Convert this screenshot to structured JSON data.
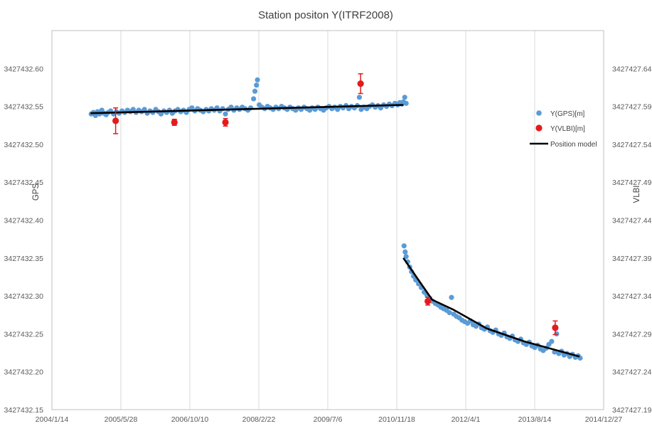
{
  "chart_data": {
    "type": "scatter",
    "title": "Station positon Y(ITRF2008)",
    "y_left_label": "GPS",
    "y_right_label": "VLBI",
    "x_axis": {
      "type": "date",
      "range": [
        "2004-01-14",
        "2014-12-27"
      ],
      "tick_labels": [
        "2004/1/14",
        "2005/5/28",
        "2006/10/10",
        "2008/2/22",
        "2009/7/6",
        "2010/11/18",
        "2012/4/1",
        "2013/8/14",
        "2014/12/27"
      ]
    },
    "y_left_axis": {
      "range": [
        3427432.15,
        3427432.65
      ],
      "ticks": [
        3427432.15,
        3427432.2,
        3427432.25,
        3427432.3,
        3427432.35,
        3427432.4,
        3427432.45,
        3427432.5,
        3427432.55,
        3427432.6
      ],
      "tick_labels": [
        "3427432.15",
        "3427432.20",
        "3427432.25",
        "3427432.30",
        "3427432.35",
        "3427432.40",
        "3427432.45",
        "3427432.50",
        "3427432.55",
        "3427432.60"
      ]
    },
    "y_right_axis": {
      "range": [
        3427427.19,
        3427427.69
      ],
      "ticks": [
        3427427.19,
        3427427.24,
        3427427.29,
        3427427.34,
        3427427.39,
        3427427.44,
        3427427.49,
        3427427.54,
        3427427.59,
        3427427.64
      ],
      "tick_labels": [
        "3427427.19",
        "3427427.24",
        "3427427.29",
        "3427427.34",
        "3427427.39",
        "3427427.44",
        "3427427.49",
        "3427427.54",
        "3427427.59",
        "3427427.64"
      ]
    },
    "grid": "vertical",
    "legend_position": "right",
    "series": [
      {
        "name": "Y(GPS)[m]",
        "kind": "scatter",
        "axis": "left",
        "color": "#5b9bd5",
        "points": [
          [
            "2004-10-25",
            3427432.54
          ],
          [
            "2004-11-10",
            3427432.542
          ],
          [
            "2004-11-25",
            3427432.538
          ],
          [
            "2004-12-10",
            3427432.543
          ],
          [
            "2004-12-25",
            3427432.54
          ],
          [
            "2005-01-10",
            3427432.545
          ],
          [
            "2005-01-25",
            3427432.541
          ],
          [
            "2005-02-10",
            3427432.539
          ],
          [
            "2005-02-25",
            3427432.542
          ],
          [
            "2005-03-15",
            3427432.544
          ],
          [
            "2005-04-05",
            3427432.54
          ],
          [
            "2005-04-25",
            3427432.543
          ],
          [
            "2005-05-15",
            3427432.541
          ],
          [
            "2005-06-05",
            3427432.544
          ],
          [
            "2005-06-25",
            3427432.542
          ],
          [
            "2005-07-15",
            3427432.545
          ],
          [
            "2005-08-05",
            3427432.543
          ],
          [
            "2005-08-25",
            3427432.546
          ],
          [
            "2005-09-15",
            3427432.542
          ],
          [
            "2005-10-05",
            3427432.545
          ],
          [
            "2005-10-25",
            3427432.543
          ],
          [
            "2005-11-15",
            3427432.546
          ],
          [
            "2005-12-05",
            3427432.541
          ],
          [
            "2005-12-25",
            3427432.544
          ],
          [
            "2006-01-15",
            3427432.542
          ],
          [
            "2006-02-05",
            3427432.546
          ],
          [
            "2006-02-25",
            3427432.543
          ],
          [
            "2006-03-15",
            3427432.54
          ],
          [
            "2006-04-05",
            3427432.544
          ],
          [
            "2006-04-25",
            3427432.542
          ],
          [
            "2006-05-15",
            3427432.545
          ],
          [
            "2006-06-05",
            3427432.541
          ],
          [
            "2006-06-25",
            3427432.544
          ],
          [
            "2006-07-15",
            3427432.546
          ],
          [
            "2006-08-05",
            3427432.543
          ],
          [
            "2006-08-25",
            3427432.545
          ],
          [
            "2006-09-15",
            3427432.542
          ],
          [
            "2006-10-05",
            3427432.546
          ],
          [
            "2006-10-25",
            3427432.548
          ],
          [
            "2006-11-15",
            3427432.544
          ],
          [
            "2006-12-05",
            3427432.547
          ],
          [
            "2006-12-25",
            3427432.545
          ],
          [
            "2007-01-15",
            3427432.543
          ],
          [
            "2007-02-05",
            3427432.546
          ],
          [
            "2007-02-25",
            3427432.544
          ],
          [
            "2007-03-15",
            3427432.547
          ],
          [
            "2007-04-05",
            3427432.545
          ],
          [
            "2007-04-25",
            3427432.548
          ],
          [
            "2007-05-15",
            3427432.544
          ],
          [
            "2007-06-05",
            3427432.547
          ],
          [
            "2007-06-25",
            3427432.54
          ],
          [
            "2007-07-15",
            3427432.546
          ],
          [
            "2007-08-05",
            3427432.549
          ],
          [
            "2007-08-25",
            3427432.545
          ],
          [
            "2007-09-15",
            3427432.548
          ],
          [
            "2007-10-05",
            3427432.546
          ],
          [
            "2007-10-25",
            3427432.549
          ],
          [
            "2007-11-15",
            3427432.547
          ],
          [
            "2007-12-05",
            3427432.545
          ],
          [
            "2007-12-25",
            3427432.548
          ],
          [
            "2008-01-15",
            3427432.56
          ],
          [
            "2008-01-25",
            3427432.57
          ],
          [
            "2008-02-05",
            3427432.578
          ],
          [
            "2008-02-12",
            3427432.585
          ],
          [
            "2008-02-25",
            3427432.552
          ],
          [
            "2008-03-15",
            3427432.549
          ],
          [
            "2008-04-05",
            3427432.547
          ],
          [
            "2008-04-25",
            3427432.55
          ],
          [
            "2008-05-15",
            3427432.548
          ],
          [
            "2008-06-05",
            3427432.546
          ],
          [
            "2008-06-25",
            3427432.549
          ],
          [
            "2008-07-15",
            3427432.547
          ],
          [
            "2008-08-05",
            3427432.55
          ],
          [
            "2008-08-25",
            3427432.548
          ],
          [
            "2008-09-15",
            3427432.546
          ],
          [
            "2008-10-05",
            3427432.549
          ],
          [
            "2008-10-25",
            3427432.547
          ],
          [
            "2008-11-15",
            3427432.545
          ],
          [
            "2008-12-05",
            3427432.548
          ],
          [
            "2008-12-25",
            3427432.546
          ],
          [
            "2009-01-15",
            3427432.549
          ],
          [
            "2009-02-05",
            3427432.547
          ],
          [
            "2009-02-25",
            3427432.545
          ],
          [
            "2009-03-15",
            3427432.548
          ],
          [
            "2009-04-05",
            3427432.546
          ],
          [
            "2009-04-25",
            3427432.549
          ],
          [
            "2009-05-15",
            3427432.547
          ],
          [
            "2009-06-05",
            3427432.545
          ],
          [
            "2009-06-25",
            3427432.548
          ],
          [
            "2009-07-15",
            3427432.55
          ],
          [
            "2009-08-05",
            3427432.547
          ],
          [
            "2009-08-25",
            3427432.549
          ],
          [
            "2009-09-15",
            3427432.546
          ],
          [
            "2009-10-05",
            3427432.55
          ],
          [
            "2009-10-25",
            3427432.548
          ],
          [
            "2009-11-15",
            3427432.551
          ],
          [
            "2009-12-05",
            3427432.547
          ],
          [
            "2009-12-25",
            3427432.55
          ],
          [
            "2010-01-15",
            3427432.548
          ],
          [
            "2010-02-05",
            3427432.551
          ],
          [
            "2010-02-20",
            3427432.562
          ],
          [
            "2010-03-05",
            3427432.546
          ],
          [
            "2010-03-25",
            3427432.549
          ],
          [
            "2010-04-15",
            3427432.547
          ],
          [
            "2010-05-05",
            3427432.55
          ],
          [
            "2010-05-25",
            3427432.552
          ],
          [
            "2010-06-15",
            3427432.549
          ],
          [
            "2010-07-05",
            3427432.551
          ],
          [
            "2010-07-25",
            3427432.548
          ],
          [
            "2010-08-15",
            3427432.552
          ],
          [
            "2010-09-05",
            3427432.55
          ],
          [
            "2010-09-25",
            3427432.553
          ],
          [
            "2010-10-15",
            3427432.551
          ],
          [
            "2010-11-05",
            3427432.554
          ],
          [
            "2010-11-25",
            3427432.552
          ],
          [
            "2010-12-10",
            3427432.555
          ],
          [
            "2010-12-25",
            3427432.553
          ],
          [
            "2011-01-05",
            3427432.556
          ],
          [
            "2011-01-15",
            3427432.562
          ],
          [
            "2011-01-25",
            3427432.554
          ],
          [
            "2011-01-10",
            3427432.366
          ],
          [
            "2011-01-18",
            3427432.358
          ],
          [
            "2011-01-25",
            3427432.352
          ],
          [
            "2011-02-05",
            3427432.345
          ],
          [
            "2011-02-20",
            3427432.338
          ],
          [
            "2011-03-05",
            3427432.332
          ],
          [
            "2011-03-20",
            3427432.326
          ],
          [
            "2011-04-05",
            3427432.321
          ],
          [
            "2011-04-25",
            3427432.316
          ],
          [
            "2011-05-15",
            3427432.311
          ],
          [
            "2011-06-05",
            3427432.305
          ],
          [
            "2011-06-25",
            3427432.301
          ],
          [
            "2011-07-15",
            3427432.297
          ],
          [
            "2011-08-05",
            3427432.293
          ],
          [
            "2011-08-25",
            3427432.29
          ],
          [
            "2011-09-15",
            3427432.288
          ],
          [
            "2011-10-05",
            3427432.285
          ],
          [
            "2011-10-25",
            3427432.283
          ],
          [
            "2011-11-15",
            3427432.281
          ],
          [
            "2011-12-05",
            3427432.278
          ],
          [
            "2011-12-20",
            3427432.298
          ],
          [
            "2012-01-05",
            3427432.276
          ],
          [
            "2012-01-25",
            3427432.273
          ],
          [
            "2012-02-15",
            3427432.271
          ],
          [
            "2012-03-05",
            3427432.268
          ],
          [
            "2012-03-25",
            3427432.266
          ],
          [
            "2012-04-15",
            3427432.264
          ],
          [
            "2012-05-05",
            3427432.267
          ],
          [
            "2012-05-25",
            3427432.262
          ],
          [
            "2012-06-15",
            3427432.26
          ],
          [
            "2012-07-05",
            3427432.263
          ],
          [
            "2012-07-25",
            3427432.258
          ],
          [
            "2012-08-15",
            3427432.256
          ],
          [
            "2012-09-05",
            3427432.259
          ],
          [
            "2012-09-25",
            3427432.254
          ],
          [
            "2012-10-15",
            3427432.252
          ],
          [
            "2012-11-05",
            3427432.255
          ],
          [
            "2012-11-25",
            3427432.25
          ],
          [
            "2012-12-15",
            3427432.248
          ],
          [
            "2013-01-05",
            3427432.251
          ],
          [
            "2013-01-25",
            3427432.246
          ],
          [
            "2013-02-15",
            3427432.244
          ],
          [
            "2013-03-05",
            3427432.247
          ],
          [
            "2013-03-25",
            3427432.242
          ],
          [
            "2013-04-15",
            3427432.24
          ],
          [
            "2013-05-05",
            3427432.243
          ],
          [
            "2013-05-25",
            3427432.238
          ],
          [
            "2013-06-15",
            3427432.236
          ],
          [
            "2013-07-05",
            3427432.239
          ],
          [
            "2013-07-25",
            3427432.234
          ],
          [
            "2013-08-15",
            3427432.232
          ],
          [
            "2013-09-05",
            3427432.235
          ],
          [
            "2013-09-25",
            3427432.23
          ],
          [
            "2013-10-15",
            3427432.228
          ],
          [
            "2013-11-05",
            3427432.231
          ],
          [
            "2013-11-25",
            3427432.236
          ],
          [
            "2013-12-15",
            3427432.24
          ],
          [
            "2014-01-05",
            3427432.226
          ],
          [
            "2014-01-20",
            3427432.25
          ],
          [
            "2014-02-05",
            3427432.224
          ],
          [
            "2014-02-25",
            3427432.227
          ],
          [
            "2014-03-15",
            3427432.222
          ],
          [
            "2014-04-05",
            3427432.224
          ],
          [
            "2014-04-25",
            3427432.22
          ],
          [
            "2014-05-15",
            3427432.223
          ],
          [
            "2014-06-05",
            3427432.219
          ],
          [
            "2014-06-25",
            3427432.221
          ],
          [
            "2014-07-10",
            3427432.218
          ]
        ]
      },
      {
        "name": "Y(VLBI)[m]",
        "kind": "scatter-errorbar",
        "axis": "right",
        "color": "#e41a1c",
        "points": [
          {
            "x": "2005-04-20",
            "y": 3427427.571,
            "err": 0.017
          },
          {
            "x": "2006-06-20",
            "y": 3427427.569,
            "err": 0.004
          },
          {
            "x": "2007-06-25",
            "y": 3427427.569,
            "err": 0.005
          },
          {
            "x": "2010-03-01",
            "y": 3427427.62,
            "err": 0.013
          },
          {
            "x": "2011-07-01",
            "y": 3427427.333,
            "err": 0.005
          },
          {
            "x": "2014-01-10",
            "y": 3427427.298,
            "err": 0.009
          }
        ]
      },
      {
        "name": "Position model",
        "kind": "line",
        "axis": "left",
        "color": "#000000",
        "segments": [
          [
            [
              "2004-10-20",
              3427432.541
            ],
            [
              "2011-01-05",
              3427432.552
            ]
          ],
          [
            [
              "2011-01-05",
              3427432.35
            ],
            [
              "2011-08-01",
              3427432.295
            ],
            [
              "2012-01-01",
              3427432.282
            ],
            [
              "2012-09-01",
              3427432.257
            ],
            [
              "2013-06-01",
              3427432.24
            ],
            [
              "2014-07-05",
              3427432.22
            ]
          ]
        ]
      }
    ]
  }
}
